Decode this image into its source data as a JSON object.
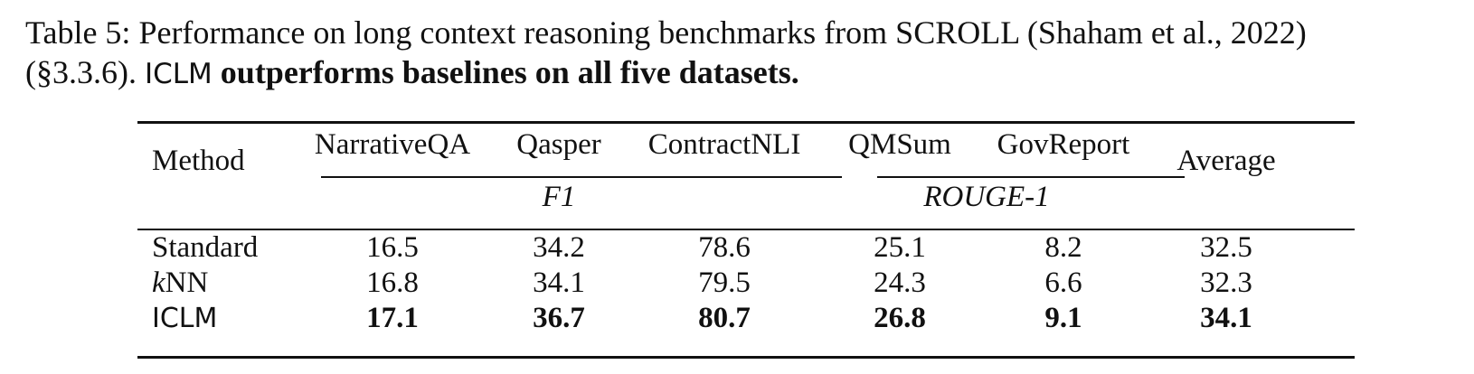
{
  "caption": {
    "part1": "Table 5: Performance on long context reasoning benchmarks from SCROLL (Shaham et al., 2022)",
    "part2_prefix": "(§3.3.6). ",
    "model_name": "ICLM",
    "bold_claim": " outperforms baselines on all five datasets."
  },
  "table": {
    "header": {
      "method": "Method",
      "columns": [
        "NarrativeQA",
        "Qasper",
        "ContractNLI",
        "QMSum",
        "GovReport"
      ],
      "average": "Average",
      "group_f1": "F1",
      "group_rouge": "ROUGE-1"
    },
    "rows": [
      {
        "method_italic": "",
        "method_rest": "Standard",
        "values": [
          "16.5",
          "34.2",
          "78.6",
          "25.1",
          "8.2",
          "32.5"
        ],
        "bold": false
      },
      {
        "method_italic": "k",
        "method_rest": "NN",
        "values": [
          "16.8",
          "34.1",
          "79.5",
          "24.3",
          "6.6",
          "32.3"
        ],
        "bold": false
      },
      {
        "method_italic": "",
        "method_rest": "ICLM",
        "values": [
          "17.1",
          "36.7",
          "80.7",
          "26.8",
          "9.1",
          "34.1"
        ],
        "bold": true
      }
    ]
  }
}
